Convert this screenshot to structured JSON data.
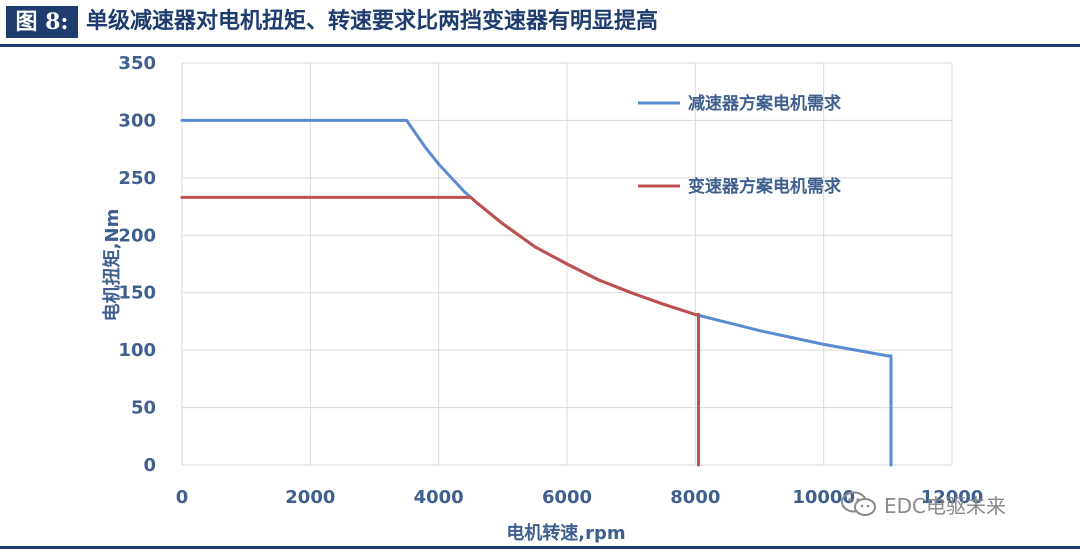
{
  "header": {
    "figure_label": "图 8:",
    "title": "单级减速器对电机扭矩、转速要求比两挡变速器有明显提高",
    "accent_color": "#1f3c6e"
  },
  "chart_data": {
    "type": "line",
    "xlabel": "电机转速,rpm",
    "ylabel": "电机扭矩,Nm",
    "xlim": [
      0,
      12000
    ],
    "ylim": [
      0,
      350
    ],
    "x_ticks": [
      "0",
      "2000",
      "4000",
      "6000",
      "8000",
      "10000",
      "12000"
    ],
    "y_ticks": [
      "0",
      "50",
      "100",
      "150",
      "200",
      "250",
      "300",
      "350"
    ],
    "grid": "both",
    "legend_position": "right",
    "series": [
      {
        "name": "减速器方案电机需求",
        "color": "#5b8bd0",
        "x": [
          0,
          3500,
          3600,
          3800,
          4000,
          4200,
          4400,
          4600,
          5000,
          5500,
          6000,
          6500,
          7000,
          7500,
          8000,
          8500,
          9000,
          9500,
          10000,
          10500,
          11000,
          11050,
          11050
        ],
        "y": [
          300,
          300,
          292,
          276,
          262,
          250,
          238,
          228,
          210,
          190,
          175,
          161,
          150,
          140,
          131,
          124,
          117,
          111,
          105,
          100,
          95,
          95,
          0
        ]
      },
      {
        "name": "变速器方案电机需求",
        "color": "#c0504d",
        "x": [
          0,
          4500,
          4600,
          5000,
          5500,
          6000,
          6500,
          7000,
          7500,
          8000,
          8050,
          8050
        ],
        "y": [
          233,
          233,
          228,
          210,
          190,
          175,
          161,
          150,
          140,
          131,
          131,
          0
        ]
      }
    ]
  },
  "watermark": {
    "text": "EDC电驱未来"
  }
}
